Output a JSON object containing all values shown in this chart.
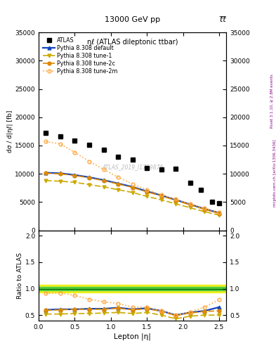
{
  "title_top": "13000 GeV pp",
  "title_top_right": "t̅t̅",
  "plot_title": "ηℓ (ATLAS dileptonic ttbar)",
  "watermark": "ATLAS_2019_I1759875",
  "ylabel_main": "dσ / d|ηℓ| [fb]",
  "ylabel_ratio": "Ratio to ATLAS",
  "xlabel": "Lepton |η|",
  "right_label_top": "Rivet 3.1.10, ≥ 2.8M events",
  "right_label_bot": "mcplots.cern.ch [arXiv:1306.3436]",
  "atlas_eta": [
    0.1,
    0.3,
    0.5,
    0.7,
    0.9,
    1.1,
    1.3,
    1.5,
    1.7,
    1.9,
    2.1,
    2.25,
    2.4,
    2.5
  ],
  "atlas_data": [
    17200,
    16600,
    15900,
    15100,
    14300,
    13000,
    12500,
    11000,
    10800,
    10900,
    8400,
    7200,
    5000,
    4800
  ],
  "p_eta": [
    0.1,
    0.3,
    0.5,
    0.7,
    0.9,
    1.1,
    1.3,
    1.5,
    1.7,
    1.9,
    2.1,
    2.3,
    2.5
  ],
  "pythia_default": [
    10200,
    10100,
    9800,
    9400,
    8900,
    8300,
    7700,
    6900,
    6200,
    5400,
    4600,
    3800,
    3100
  ],
  "pythia_tune1": [
    8800,
    8700,
    8500,
    8100,
    7700,
    7200,
    6700,
    6000,
    5400,
    4700,
    4000,
    3300,
    2700
  ],
  "pythia_tune2c": [
    10100,
    10000,
    9700,
    9300,
    8800,
    8200,
    7600,
    6800,
    6100,
    5300,
    4500,
    3700,
    3000
  ],
  "pythia_tune2m": [
    15700,
    15300,
    13800,
    12200,
    10800,
    9400,
    8200,
    7200,
    6300,
    5500,
    4700,
    3900,
    3200
  ],
  "ratio_eta": [
    0.1,
    0.3,
    0.5,
    0.7,
    0.9,
    1.1,
    1.3,
    1.5,
    1.7,
    1.9,
    2.1,
    2.3,
    2.5
  ],
  "ratio_default": [
    0.6,
    0.61,
    0.61,
    0.62,
    0.62,
    0.64,
    0.61,
    0.63,
    0.58,
    0.5,
    0.55,
    0.58,
    0.65
  ],
  "ratio_tune1": [
    0.52,
    0.52,
    0.53,
    0.53,
    0.54,
    0.55,
    0.53,
    0.55,
    0.5,
    0.43,
    0.48,
    0.5,
    0.5
  ],
  "ratio_tune2c": [
    0.59,
    0.6,
    0.61,
    0.61,
    0.61,
    0.63,
    0.6,
    0.62,
    0.57,
    0.49,
    0.54,
    0.57,
    0.58
  ],
  "ratio_tune2m": [
    0.91,
    0.92,
    0.87,
    0.8,
    0.75,
    0.72,
    0.65,
    0.65,
    0.58,
    0.5,
    0.56,
    0.65,
    0.79
  ],
  "color_atlas": "#000000",
  "color_default": "#1144bb",
  "color_tune1": "#ccaa00",
  "color_tune2c": "#dd8800",
  "color_tune2m": "#ffaa44",
  "ylim_main": [
    0,
    35000
  ],
  "ylim_ratio": [
    0.4,
    2.1
  ],
  "xlim": [
    0.0,
    2.6
  ],
  "yticks_main": [
    0,
    5000,
    10000,
    15000,
    20000,
    25000,
    30000,
    35000
  ],
  "yticks_ratio": [
    0.5,
    1.0,
    1.5,
    2.0
  ],
  "green_band_lo": 0.97,
  "green_band_hi": 1.03,
  "yellow_band_lo": 0.93,
  "yellow_band_hi": 1.07
}
